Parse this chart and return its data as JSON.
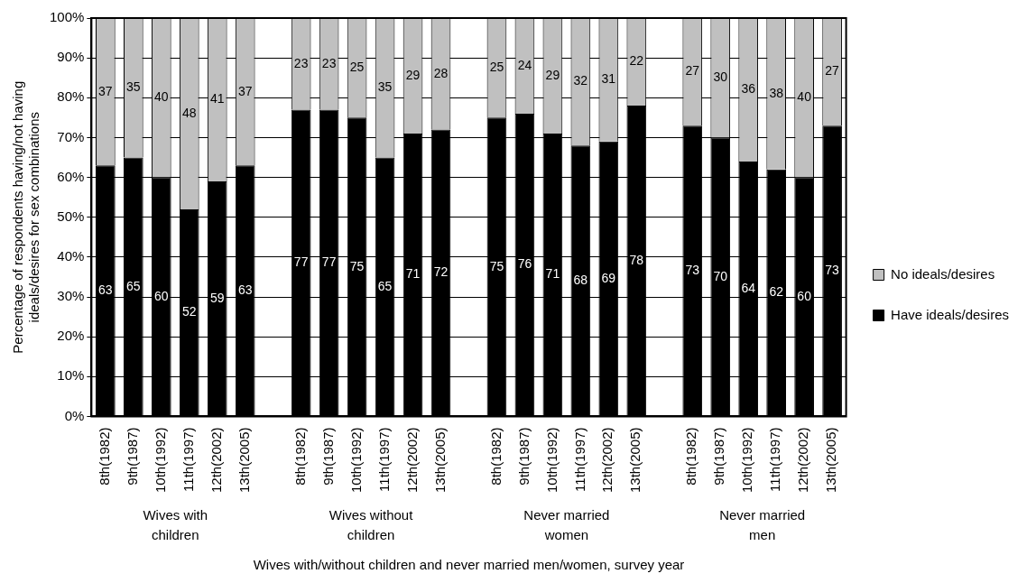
{
  "chart_data": {
    "type": "bar",
    "stacked": true,
    "xlabel": "Wives with/without children and never married men/women, survey year",
    "ylabel": "Percentage of respondents having/not having ideals/desires for sex combinations",
    "categories": [
      "8th(1982)",
      "9th(1987)",
      "10th(1992)",
      "11th(1997)",
      "12th(2002)",
      "13th(2005)",
      null,
      "8th(1982)",
      "9th(1987)",
      "10th(1992)",
      "11th(1997)",
      "12th(2002)",
      "13th(2005)",
      null,
      "8th(1982)",
      "9th(1987)",
      "10th(1992)",
      "11th(1997)",
      "12th(2002)",
      "13th(2005)",
      null,
      "8th(1982)",
      "9th(1987)",
      "10th(1992)",
      "11th(1997)",
      "12th(2002)",
      "13th(2005)"
    ],
    "series": [
      {
        "name": "Have ideals/desires",
        "color": "#000000",
        "values": [
          63,
          65,
          60,
          52,
          59,
          63,
          null,
          77,
          77,
          75,
          65,
          71,
          72,
          null,
          75,
          76,
          71,
          68,
          69,
          78,
          null,
          73,
          70,
          64,
          62,
          60,
          73
        ]
      },
      {
        "name": "No ideals/desires",
        "color": "#c0c0c0",
        "values": [
          37,
          35,
          40,
          48,
          41,
          37,
          null,
          23,
          23,
          25,
          35,
          29,
          28,
          null,
          25,
          24,
          29,
          32,
          31,
          22,
          null,
          27,
          30,
          36,
          38,
          40,
          27
        ]
      }
    ],
    "annotations": [
      "Wives with children",
      "Wives without children",
      "Never married women",
      "Never married men"
    ],
    "ylim": [
      0,
      100
    ],
    "yticks": [
      {
        "value": 0,
        "label": "0%"
      },
      {
        "value": 10,
        "label": "10%"
      },
      {
        "value": 20,
        "label": "20%"
      },
      {
        "value": 30,
        "label": "30%"
      },
      {
        "value": 40,
        "label": "40%"
      },
      {
        "value": 50,
        "label": "50%"
      },
      {
        "value": 60,
        "label": "60%"
      },
      {
        "value": 70,
        "label": "70%"
      },
      {
        "value": 80,
        "label": "80%"
      },
      {
        "value": 90,
        "label": "90%"
      },
      {
        "value": 100,
        "label": "100%"
      }
    ],
    "grid": "y",
    "legend": "right",
    "data_labels": true
  }
}
